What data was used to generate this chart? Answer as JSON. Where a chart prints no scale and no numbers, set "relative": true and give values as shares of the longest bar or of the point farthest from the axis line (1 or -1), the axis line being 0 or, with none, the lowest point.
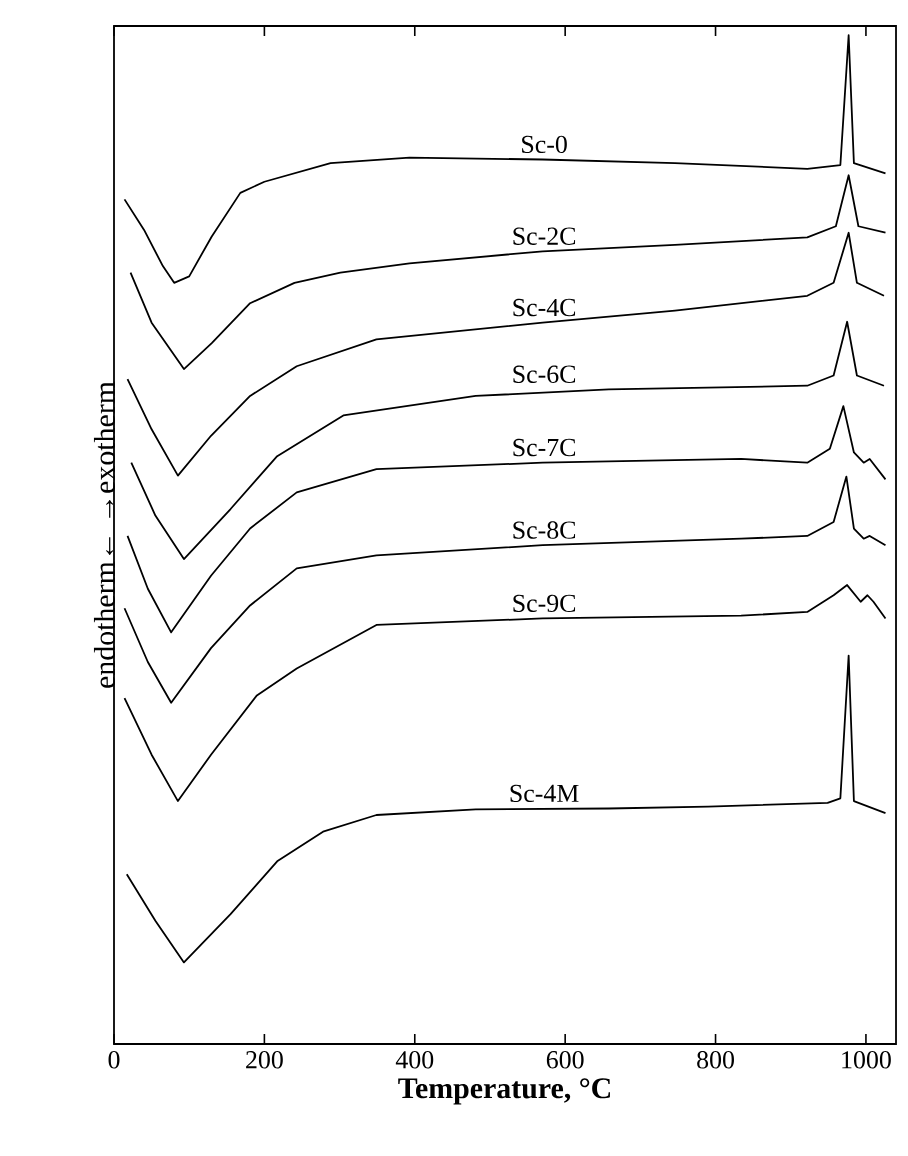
{
  "chart_data": {
    "type": "line",
    "xlabel": "Temperature, °C",
    "ylabel": "endotherm← →exotherm",
    "relative": true,
    "xlim": [
      0,
      1040
    ],
    "xticks": [
      0,
      200,
      400,
      600,
      800,
      1000
    ],
    "series": [
      {
        "name": "Sc-0",
        "color": "#000000",
        "x": [
          14,
          40,
          65,
          80,
          100,
          130,
          168,
          200,
          288,
          393,
          570,
          746,
          922,
          966,
          977,
          984,
          1026
        ],
        "values": [
          0.823,
          0.79,
          0.751,
          0.733,
          0.74,
          0.783,
          0.83,
          0.842,
          0.862,
          0.868,
          0.866,
          0.862,
          0.856,
          0.86,
          1.0,
          0.862,
          0.851
        ]
      },
      {
        "name": "Sc-2C",
        "color": "#000000",
        "x": [
          22,
          50,
          93,
          130,
          181,
          240,
          301,
          393,
          570,
          746,
          922,
          960,
          977,
          990,
          1026
        ],
        "values": [
          0.744,
          0.69,
          0.64,
          0.668,
          0.711,
          0.733,
          0.744,
          0.754,
          0.767,
          0.774,
          0.782,
          0.794,
          0.849,
          0.794,
          0.787
        ]
      },
      {
        "name": "Sc-4C",
        "color": "#000000",
        "x": [
          18,
          50,
          85,
          129,
          181,
          243,
          349,
          570,
          746,
          922,
          957,
          977,
          988,
          1024
        ],
        "values": [
          0.629,
          0.575,
          0.525,
          0.568,
          0.611,
          0.643,
          0.672,
          0.69,
          0.703,
          0.719,
          0.733,
          0.787,
          0.733,
          0.719
        ]
      },
      {
        "name": "Sc-6C",
        "color": "#000000",
        "x": [
          23,
          55,
          93,
          155,
          217,
          305,
          481,
          658,
          922,
          957,
          975,
          988,
          1024
        ],
        "values": [
          0.539,
          0.482,
          0.435,
          0.489,
          0.546,
          0.59,
          0.611,
          0.618,
          0.622,
          0.633,
          0.691,
          0.633,
          0.622
        ]
      },
      {
        "name": "Sc-7C",
        "color": "#000000",
        "x": [
          18,
          45,
          76,
          129,
          181,
          243,
          349,
          570,
          834,
          922,
          952,
          970,
          984,
          997,
          1005,
          1026
        ],
        "values": [
          0.46,
          0.403,
          0.356,
          0.417,
          0.468,
          0.507,
          0.532,
          0.539,
          0.543,
          0.539,
          0.554,
          0.6,
          0.55,
          0.539,
          0.543,
          0.521
        ]
      },
      {
        "name": "Sc-8C",
        "color": "#000000",
        "x": [
          14,
          45,
          76,
          129,
          181,
          243,
          349,
          570,
          834,
          922,
          957,
          974,
          984,
          997,
          1005,
          1026
        ],
        "values": [
          0.382,
          0.324,
          0.28,
          0.339,
          0.385,
          0.425,
          0.439,
          0.45,
          0.457,
          0.46,
          0.475,
          0.524,
          0.468,
          0.457,
          0.46,
          0.45
        ]
      },
      {
        "name": "Sc-9C",
        "color": "#000000",
        "x": [
          14,
          50,
          85,
          129,
          190,
          243,
          349,
          570,
          834,
          922,
          957,
          975,
          993,
          1002,
          1010,
          1026
        ],
        "values": [
          0.285,
          0.224,
          0.174,
          0.224,
          0.288,
          0.317,
          0.364,
          0.371,
          0.374,
          0.378,
          0.396,
          0.407,
          0.389,
          0.396,
          0.389,
          0.371
        ]
      },
      {
        "name": "Sc-4M",
        "color": "#000000",
        "x": [
          17,
          55,
          93,
          155,
          217,
          278,
          349,
          481,
          658,
          790,
          949,
          966,
          977,
          984,
          1026
        ],
        "values": [
          0.095,
          0.045,
          0.0,
          0.052,
          0.109,
          0.141,
          0.159,
          0.165,
          0.166,
          0.168,
          0.172,
          0.177,
          0.331,
          0.174,
          0.161
        ]
      }
    ]
  }
}
